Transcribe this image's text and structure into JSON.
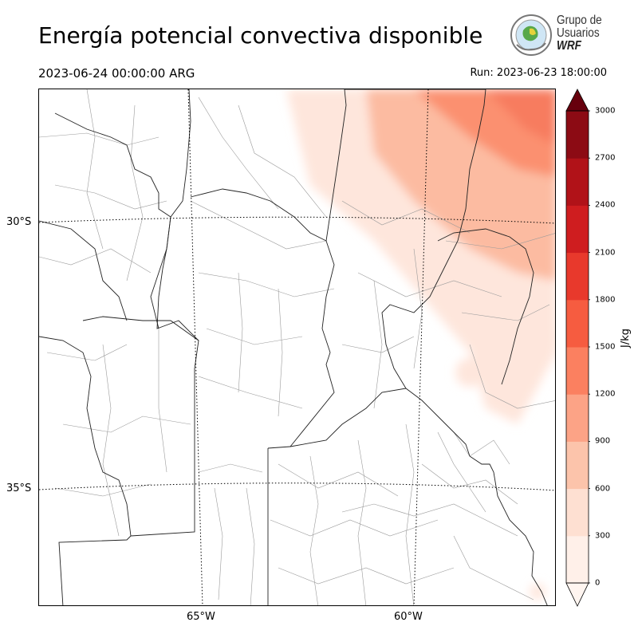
{
  "title": "Energía potencial convectiva disponible",
  "valid_time": "2023-06-24 00:00:00 ARG",
  "run_time": "Run: 2023-06-23 18:00:00",
  "logo": {
    "line1": "Grupo de",
    "line2": "Usuarios",
    "line3": "WRF"
  },
  "map": {
    "lat_labels": [
      "30°S",
      "35°S"
    ],
    "lon_labels": [
      "65°W",
      "60°W"
    ]
  },
  "colorbar": {
    "label": "J/kg",
    "ticks": [
      "0",
      "300",
      "600",
      "900",
      "1200",
      "1500",
      "1800",
      "2100",
      "2400",
      "2700",
      "3000"
    ],
    "colors": [
      "#fff0e9",
      "#fee0d2",
      "#fcc4ab",
      "#fca386",
      "#fb8060",
      "#f65c40",
      "#e8392c",
      "#cf1d1f",
      "#b11218",
      "#8c0b14",
      "#67000d"
    ],
    "extend": "both"
  },
  "colors": {
    "cape_low": "#fee6dc",
    "cape_mid": "#fcbba1",
    "cape_high": "#fb9070",
    "cape_peak": "#f77b5e"
  }
}
